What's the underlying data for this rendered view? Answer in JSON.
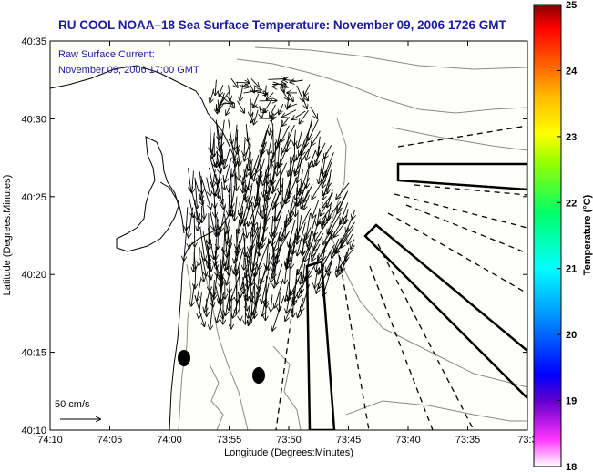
{
  "title": "RU COOL  NOAA–18  Sea Surface Temperature:  November 09, 2006 1726 GMT",
  "current_label_line1": "Raw Surface Current:",
  "current_label_line2": "November 09, 2006 17:00 GMT",
  "scale_label": "50 cm/s",
  "xlabel": "Longitude (Degrees:Minutes)",
  "ylabel": "Latitude (Degrees:Minutes)",
  "colorbar_label": "Temperature (°C)",
  "x_ticks": [
    "74:10",
    "74:05",
    "74:00",
    "73:55",
    "73:50",
    "73:45",
    "73:40",
    "73:35",
    "73:3"
  ],
  "y_ticks": [
    "40:35",
    "40:30",
    "40:25",
    "40:20",
    "40:15",
    "40:10"
  ],
  "colorbar_ticks": [
    "25",
    "24",
    "23",
    "22",
    "21",
    "20",
    "19",
    "18"
  ],
  "colorbar_range": [
    18,
    25
  ],
  "colorbar_colors": [
    "#8b0000",
    "#ff0000",
    "#ff8c00",
    "#ffff00",
    "#00ff00",
    "#00ffff",
    "#0000ff",
    "#ff00ff",
    "#ffffff"
  ],
  "colors": {
    "title": "#1a1aa6",
    "land": "#ffffff",
    "ocean": "#fffffa"
  }
}
